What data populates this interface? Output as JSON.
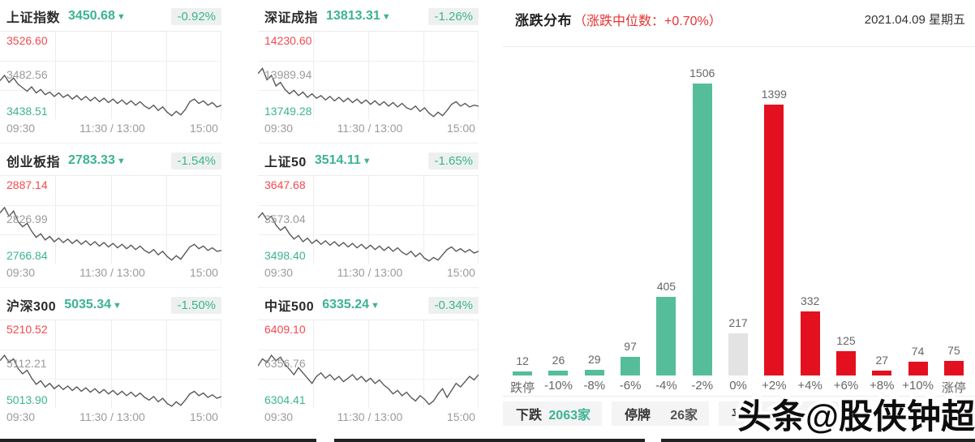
{
  "colors": {
    "teal": "#3cb393",
    "teal_bar": "#56bd9b",
    "red_label": "#f4494f",
    "red_note": "#e53333",
    "red_bar": "#e3111f",
    "gray_bar": "#e3e3e3",
    "gray_label": "#9b9b9b",
    "line": "#595959",
    "badge_bg": "#edf1ee",
    "dark_count": "#555555"
  },
  "chart_data": [
    {
      "type": "line",
      "name": "上证指数",
      "value": "3450.68",
      "direction": "down",
      "change": "-0.92%",
      "y_high": "3526.60",
      "y_mid": "3482.56",
      "y_low": "3438.51",
      "x_ticks": [
        "09:30",
        "11:30 / 13:00",
        "15:00"
      ],
      "series_norm_y": [
        56,
        50,
        58,
        53,
        60,
        64,
        68,
        63,
        70,
        66,
        72,
        69,
        74,
        70,
        75,
        72,
        77,
        73,
        78,
        74,
        79,
        75,
        80,
        76,
        81,
        77,
        82,
        78,
        83,
        79,
        84,
        80,
        85,
        88,
        84,
        90,
        86,
        92,
        96,
        91,
        95,
        89,
        80,
        77,
        82,
        79,
        84,
        81,
        86,
        84
      ]
    },
    {
      "type": "line",
      "name": "深证成指",
      "value": "13813.31",
      "direction": "down",
      "change": "-1.26%",
      "y_high": "14230.60",
      "y_mid": "13989.94",
      "y_low": "13749.28",
      "x_ticks": [
        "09:30",
        "11:30 / 13:00",
        "15:00"
      ],
      "series_norm_y": [
        48,
        42,
        55,
        50,
        62,
        58,
        66,
        71,
        67,
        73,
        69,
        75,
        71,
        76,
        73,
        78,
        74,
        79,
        75,
        80,
        76,
        81,
        77,
        82,
        78,
        83,
        79,
        84,
        80,
        85,
        81,
        86,
        82,
        87,
        89,
        85,
        91,
        87,
        93,
        97,
        92,
        96,
        90,
        83,
        80,
        85,
        82,
        86,
        84,
        85
      ]
    },
    {
      "type": "line",
      "name": "创业板指",
      "value": "2783.33",
      "direction": "down",
      "change": "-1.54%",
      "y_high": "2887.14",
      "y_mid": "2826.99",
      "y_low": "2766.84",
      "x_ticks": [
        "09:30",
        "11:30 / 13:00",
        "15:00"
      ],
      "series_norm_y": [
        42,
        36,
        46,
        40,
        52,
        58,
        54,
        63,
        70,
        66,
        73,
        69,
        75,
        71,
        76,
        72,
        77,
        73,
        78,
        74,
        79,
        75,
        80,
        76,
        81,
        77,
        82,
        78,
        83,
        79,
        84,
        80,
        85,
        88,
        84,
        90,
        86,
        92,
        96,
        91,
        95,
        88,
        81,
        78,
        83,
        80,
        85,
        82,
        86,
        85
      ]
    },
    {
      "type": "line",
      "name": "上证50",
      "value": "3514.11",
      "direction": "down",
      "change": "-1.65%",
      "y_high": "3647.68",
      "y_mid": "3573.04",
      "y_low": "3498.40",
      "x_ticks": [
        "09:30",
        "11:30 / 13:00",
        "15:00"
      ],
      "series_norm_y": [
        48,
        42,
        50,
        46,
        56,
        62,
        58,
        66,
        72,
        68,
        75,
        71,
        77,
        73,
        78,
        74,
        79,
        75,
        80,
        76,
        81,
        77,
        82,
        78,
        83,
        79,
        84,
        80,
        85,
        81,
        86,
        82,
        87,
        90,
        86,
        92,
        88,
        94,
        97,
        93,
        96,
        90,
        84,
        81,
        86,
        83,
        87,
        84,
        88,
        86
      ]
    },
    {
      "type": "line",
      "name": "沪深300",
      "value": "5035.34",
      "direction": "down",
      "change": "-1.50%",
      "y_high": "5210.52",
      "y_mid": "5112.21",
      "y_low": "5013.90",
      "x_ticks": [
        "09:30",
        "11:30 / 13:00",
        "15:00"
      ],
      "series_norm_y": [
        46,
        40,
        48,
        44,
        55,
        61,
        57,
        66,
        73,
        69,
        76,
        72,
        78,
        74,
        79,
        75,
        80,
        76,
        81,
        77,
        82,
        78,
        83,
        79,
        84,
        80,
        85,
        81,
        86,
        82,
        87,
        83,
        88,
        91,
        87,
        93,
        89,
        95,
        98,
        93,
        97,
        91,
        84,
        81,
        86,
        83,
        88,
        85,
        89,
        87
      ]
    },
    {
      "type": "line",
      "name": "中证500",
      "value": "6335.24",
      "direction": "down",
      "change": "-0.34%",
      "y_high": "6409.10",
      "y_mid": "6356.76",
      "y_low": "6304.41",
      "x_ticks": [
        "09:30",
        "11:30 / 13:00",
        "15:00"
      ],
      "series_norm_y": [
        52,
        44,
        48,
        40,
        46,
        42,
        50,
        56,
        62,
        54,
        60,
        66,
        72,
        64,
        60,
        66,
        62,
        68,
        64,
        70,
        66,
        62,
        68,
        64,
        70,
        66,
        72,
        68,
        74,
        78,
        84,
        80,
        86,
        82,
        88,
        92,
        86,
        90,
        96,
        92,
        84,
        78,
        88,
        80,
        72,
        76,
        70,
        64,
        68,
        62
      ]
    },
    {
      "type": "bar",
      "title": "涨跌分布",
      "categories": [
        "跌停",
        "-10%",
        "-8%",
        "-6%",
        "-4%",
        "-2%",
        "0%",
        "+2%",
        "+4%",
        "+6%",
        "+8%",
        "+10%",
        "涨停"
      ],
      "values": [
        12,
        26,
        29,
        97,
        405,
        1506,
        217,
        1399,
        332,
        125,
        27,
        74,
        75
      ],
      "bar_colors": [
        "#56bd9b",
        "#56bd9b",
        "#56bd9b",
        "#56bd9b",
        "#56bd9b",
        "#56bd9b",
        "#e3e3e3",
        "#e3111f",
        "#e3111f",
        "#e3111f",
        "#e3111f",
        "#e3111f",
        "#e3111f"
      ],
      "ylim": [
        0,
        1506
      ],
      "grid": false,
      "legend": "none"
    }
  ],
  "distribution_header": {
    "title": "涨跌分布",
    "median_note": "（涨跌中位数：+0.70%）",
    "date": "2021.04.09 星期五"
  },
  "footer_badges": [
    {
      "label": "下跌",
      "count": "2063",
      "suffix": "家",
      "count_style": "green"
    },
    {
      "label": "停牌",
      "count": "26",
      "suffix": "家",
      "count_style": "dark"
    },
    {
      "label": "平盘",
      "count": "",
      "suffix": "家",
      "count_style": "dark"
    }
  ],
  "watermark": {
    "text": "头条@股侠钟超"
  },
  "down_arrow_glyph": "▼"
}
